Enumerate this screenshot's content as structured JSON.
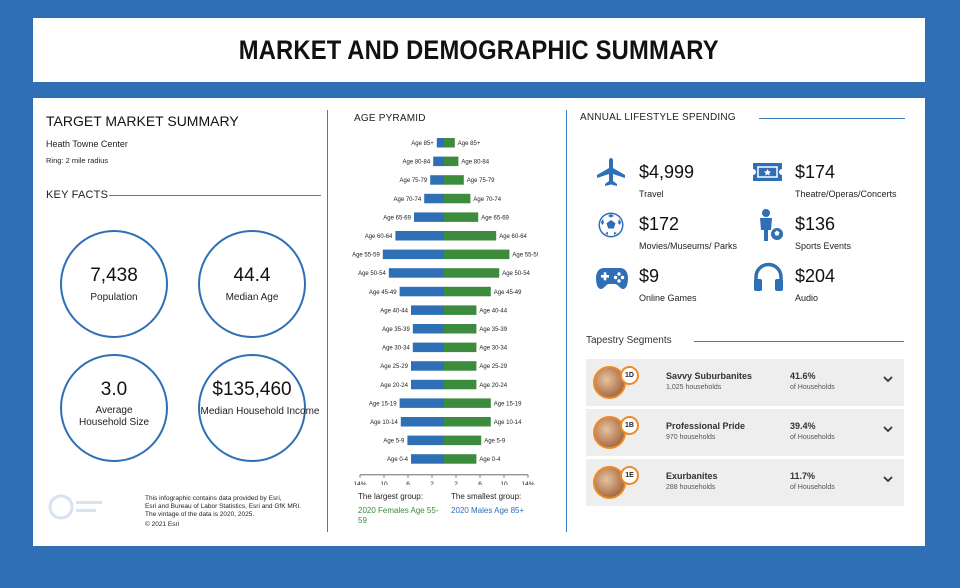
{
  "page": {
    "title": "MARKET AND DEMOGRAPHIC SUMMARY"
  },
  "summary": {
    "heading": "TARGET MARKET SUMMARY",
    "location": "Heath Towne Center",
    "ring": "Ring: 2 mile radius",
    "key_facts_heading": "KEY FACTS",
    "facts": [
      {
        "value": "7,438",
        "label": "Population"
      },
      {
        "value": "44.4",
        "label": "Median Age"
      },
      {
        "value": "3.0",
        "label": "Average\nHousehold Size"
      },
      {
        "value": "$135,460",
        "label": "Median Household Income"
      }
    ],
    "footnote": "This infographic contains data provided by Esri,\nEsri and Bureau of Labor Statistics, Esri and GfK MRI.\nThe vintage of the data is 2020, 2025.",
    "copyright": "© 2021 Esri"
  },
  "chart_data": {
    "type": "bar",
    "title": "AGE PYRAMID",
    "orientation": "horizontal-pyramid",
    "categories": [
      "Age 85+",
      "Age 80-84",
      "Age 75-79",
      "Age 70-74",
      "Age 65-69",
      "Age 60-64",
      "Age 55-59",
      "Age 50-54",
      "Age 45-49",
      "Age 40-44",
      "Age 35-39",
      "Age 30-34",
      "Age 25-29",
      "Age 20-24",
      "Age 15-19",
      "Age 10-14",
      "Age 5-9",
      "Age 0-4"
    ],
    "series": [
      {
        "name": "Males",
        "color": "#2e6fb5",
        "values": [
          1.2,
          1.8,
          2.3,
          3.3,
          5.0,
          8.1,
          10.2,
          9.2,
          7.4,
          5.5,
          5.2,
          5.2,
          5.5,
          5.5,
          7.4,
          7.2,
          6.1,
          5.5
        ]
      },
      {
        "name": "Females",
        "color": "#3d8b3d",
        "values": [
          1.8,
          2.4,
          3.3,
          4.4,
          5.7,
          8.7,
          10.9,
          9.2,
          7.8,
          5.4,
          5.4,
          5.4,
          5.4,
          5.4,
          7.8,
          7.8,
          6.2,
          5.4
        ]
      }
    ],
    "xlim": [
      -14,
      14
    ],
    "x_tick_labels": [
      "14%",
      "10",
      "6",
      "2",
      "2",
      "6",
      "10",
      "14%"
    ],
    "largest_label": "The largest group:",
    "largest_value": "2020 Females Age 55-59",
    "smallest_label": "The smallest group:",
    "smallest_value": "2020 Males Age 85+",
    "largest_color": "#3d8b3d",
    "smallest_color": "#2e6fb5"
  },
  "spending": {
    "heading": "ANNUAL LIFESTYLE SPENDING",
    "items": [
      {
        "icon": "airplane-icon",
        "value": "$4,999",
        "label": "Travel"
      },
      {
        "icon": "ticket-icon",
        "value": "$174",
        "label": "Theatre/Operas/Concerts"
      },
      {
        "icon": "soccer-ball-icon",
        "value": "$172",
        "label": "Movies/Museums/ Parks"
      },
      {
        "icon": "sports-player-icon",
        "value": "$136",
        "label": "Sports Events"
      },
      {
        "icon": "gamepad-icon",
        "value": "$9",
        "label": "Online Games"
      },
      {
        "icon": "headphones-icon",
        "value": "$204",
        "label": "Audio"
      }
    ]
  },
  "tapestry": {
    "heading": "Tapestry Segments",
    "segments": [
      {
        "code": "1D",
        "name": "Savvy Suburbanites",
        "households": "1,025 households",
        "percent": "41.6%",
        "percent_label": "of Households"
      },
      {
        "code": "1B",
        "name": "Professional Pride",
        "households": "970 households",
        "percent": "39.4%",
        "percent_label": "of Households"
      },
      {
        "code": "1E",
        "name": "Exurbanites",
        "households": "288 households",
        "percent": "11.7%",
        "percent_label": "of Households"
      }
    ]
  },
  "colors": {
    "accent": "#2e6fb5",
    "green": "#3d8b3d",
    "badge": "#f08a24"
  }
}
